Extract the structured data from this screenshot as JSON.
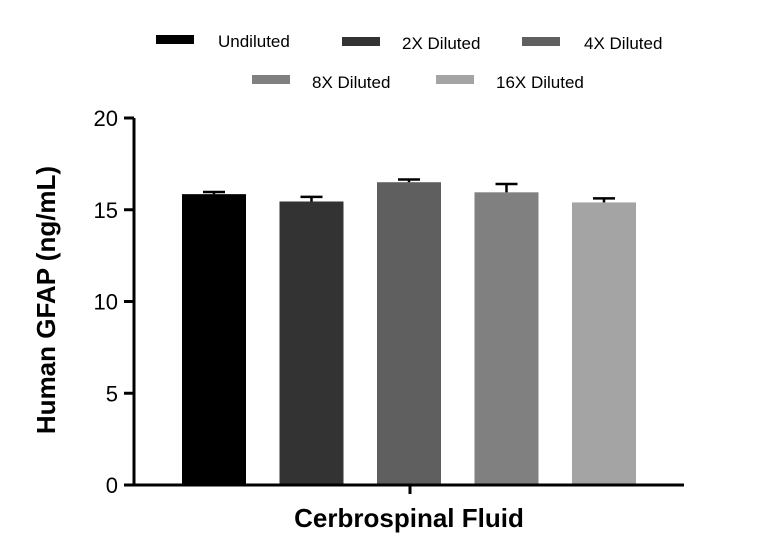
{
  "chart_data": {
    "type": "bar",
    "title": "",
    "xlabel": "Cerbrospinal Fluid",
    "ylabel": "Human GFAP (ng/mL)",
    "ylim": [
      0,
      20
    ],
    "yticks": [
      "0",
      "5",
      "10",
      "15",
      "20"
    ],
    "legend_position": "top",
    "series": [
      {
        "name": "Undiluted",
        "value": 15.85,
        "error": 0.12,
        "color": "#000000"
      },
      {
        "name": "2X Diluted",
        "value": 15.45,
        "error": 0.25,
        "color": "#333333"
      },
      {
        "name": "4X Diluted",
        "value": 16.5,
        "error": 0.15,
        "color": "#5f5f5f"
      },
      {
        "name": "8X Diluted",
        "value": 15.95,
        "error": 0.45,
        "color": "#808080"
      },
      {
        "name": "16X Diluted",
        "value": 15.4,
        "error": 0.22,
        "color": "#a4a4a4"
      }
    ]
  }
}
